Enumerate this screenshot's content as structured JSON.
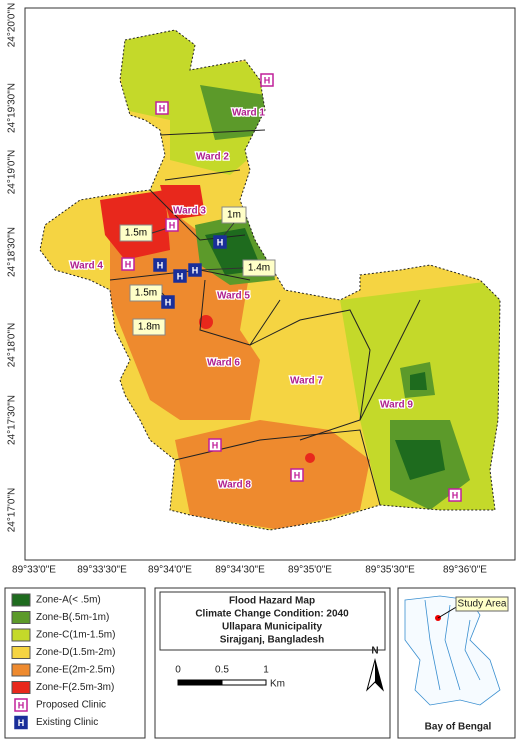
{
  "map": {
    "lat_labels": [
      "24°20'0\"N",
      "24°19'30\"N",
      "24°19'0\"N",
      "24°18'30\"N",
      "24°18'0\"N",
      "24°17'30\"N",
      "24°17'0\"N"
    ],
    "lon_labels": [
      "89°33'0\"E",
      "89°33'30\"E",
      "89°34'0\"E",
      "89°34'30\"E",
      "89°35'0\"E",
      "89°35'30\"E",
      "89°36'0\"E"
    ],
    "wards": [
      "Ward 1",
      "Ward 2",
      "Ward 3",
      "Ward 4",
      "Ward 5",
      "Ward 6",
      "Ward 7",
      "Ward 8",
      "Ward 9"
    ],
    "depth_labels": [
      "1.5m",
      "1m",
      "1.4m",
      "1.5m",
      "1.8m"
    ],
    "clinic_symbol": "H"
  },
  "legend": {
    "items": [
      "Zone-A(< .5m)",
      "Zone-B(.5m-1m)",
      "Zone-C(1m-1.5m)",
      "Zone-D(1.5m-2m)",
      "Zone-E(2m-2.5m)",
      "Zone-F(2.5m-3m)",
      "Proposed Clinic",
      "Existing Clinic"
    ]
  },
  "title_box": {
    "lines": [
      "Flood Hazard Map",
      "Climate Change Condition: 2040",
      "Ullapara Municipality",
      "Sirajganj, Bangladesh"
    ]
  },
  "scale_bar": {
    "ticks": [
      "0",
      "0.5",
      "1"
    ],
    "unit": "Km"
  },
  "north_arrow": "N",
  "inset": {
    "study_area": "Study Area",
    "bay": "Bay of Bengal"
  }
}
